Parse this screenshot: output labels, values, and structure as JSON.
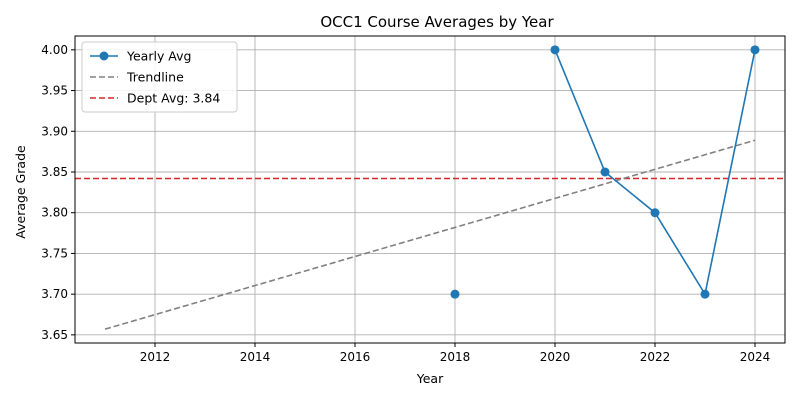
{
  "chart_data": {
    "type": "line",
    "title": "OCC1 Course Averages by Year",
    "xlabel": "Year",
    "ylabel": "Average Grade",
    "xlim": [
      2010.4,
      2024.6
    ],
    "ylim": [
      3.64,
      4.017
    ],
    "x_ticks": [
      2012,
      2014,
      2016,
      2018,
      2020,
      2022,
      2024
    ],
    "y_ticks": [
      3.65,
      3.7,
      3.75,
      3.8,
      3.85,
      3.9,
      3.95,
      4.0
    ],
    "grid": true,
    "legend_position": "top-left",
    "series": [
      {
        "name": "Yearly Avg",
        "style": "solid-line-with-markers",
        "color": "#1f77b4",
        "points": [
          {
            "x": 2018,
            "y": 3.7
          },
          {
            "x": 2020,
            "y": 4.0
          },
          {
            "x": 2021,
            "y": 3.85
          },
          {
            "x": 2022,
            "y": 3.8
          },
          {
            "x": 2023,
            "y": 3.7
          },
          {
            "x": 2024,
            "y": 4.0
          }
        ],
        "connect_from_x": 2020
      },
      {
        "name": "Trendline",
        "style": "dashed-line",
        "color": "#808080",
        "points": [
          {
            "x": 2011,
            "y": 3.657
          },
          {
            "x": 2024,
            "y": 3.889
          }
        ]
      }
    ],
    "reference_lines": [
      {
        "name": "Dept Avg: 3.84",
        "y": 3.842,
        "style": "dashed-line",
        "color": "#d62728"
      }
    ]
  }
}
